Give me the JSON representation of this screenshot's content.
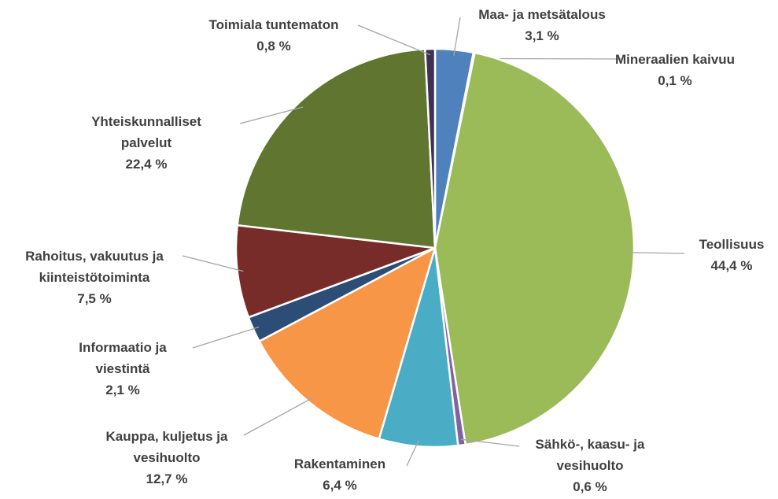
{
  "chart_data": {
    "type": "pie",
    "categories": [
      "Maa- ja metsätalous",
      "Mineraalien kaivuu",
      "Teollisuus",
      "Sähkö-, kaasu- ja vesihuolto",
      "Rakentaminen",
      "Kauppa, kuljetus ja vesihuolto",
      "Informaatio ja viestintä",
      "Rahoitus, vakuutus ja kiinteistötoiminta",
      "Yhteiskunnalliset palvelut",
      "Toimiala tuntematon"
    ],
    "values": [
      3.1,
      0.1,
      44.4,
      0.6,
      6.4,
      12.7,
      2.1,
      7.5,
      22.4,
      0.8
    ],
    "value_labels": [
      "3,1 %",
      "0,1 %",
      "44,4 %",
      "0,6 %",
      "6,4 %",
      "12,7 %",
      "2,1 %",
      "7,5 %",
      "22,4 %",
      "0,8 %"
    ],
    "colors": [
      "#4f81bd",
      "#c0504d",
      "#9bbb59",
      "#8064a2",
      "#4bacc6",
      "#f79646",
      "#2c4d75",
      "#772c2a",
      "#5f7530",
      "#3f3151"
    ]
  }
}
